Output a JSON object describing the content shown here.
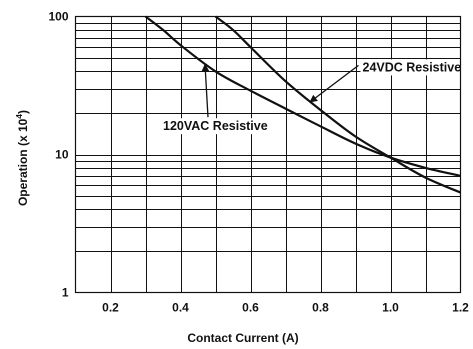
{
  "chart_data": {
    "type": "line",
    "xlabel": "Contact Current (A)",
    "ylabel": "Operation (x 10",
    "ylabel_superscript": "4",
    "ylabel_close": ")",
    "yscale": "log",
    "xlim": [
      0.1,
      1.2
    ],
    "ylim": [
      1,
      100
    ],
    "xticks": [
      {
        "value": 0.2,
        "label": "0.2"
      },
      {
        "value": 0.4,
        "label": "0.4"
      },
      {
        "value": 0.6,
        "label": "0.6"
      },
      {
        "value": 0.8,
        "label": "0.8"
      },
      {
        "value": 1.0,
        "label": "1.0"
      },
      {
        "value": 1.2,
        "label": "1.2"
      }
    ],
    "yticks": [
      {
        "value": 1,
        "label": "1"
      },
      {
        "value": 10,
        "label": "10"
      },
      {
        "value": 100,
        "label": "100"
      }
    ],
    "grid": true,
    "series": [
      {
        "name": "120VAC Resistive",
        "label_anchor": {
          "x": 0.35,
          "y": 15
        },
        "arrow_to": {
          "x": 0.47,
          "y": 45
        },
        "points": [
          [
            0.3,
            100
          ],
          [
            0.35,
            80
          ],
          [
            0.4,
            62
          ],
          [
            0.5,
            40
          ],
          [
            0.6,
            29
          ],
          [
            0.7,
            21.5
          ],
          [
            0.8,
            16
          ],
          [
            0.9,
            12
          ],
          [
            1.0,
            9.5
          ],
          [
            1.1,
            8
          ],
          [
            1.2,
            7
          ]
        ]
      },
      {
        "name": "24VDC Resistive",
        "label_anchor": {
          "x": 0.92,
          "y": 40
        },
        "arrow_to": {
          "x": 0.77,
          "y": 24
        },
        "points": [
          [
            0.5,
            100
          ],
          [
            0.55,
            80
          ],
          [
            0.6,
            60
          ],
          [
            0.7,
            34
          ],
          [
            0.8,
            21
          ],
          [
            0.9,
            13.5
          ],
          [
            1.0,
            9.5
          ],
          [
            1.1,
            6.8
          ],
          [
            1.2,
            5.3
          ]
        ]
      }
    ]
  }
}
